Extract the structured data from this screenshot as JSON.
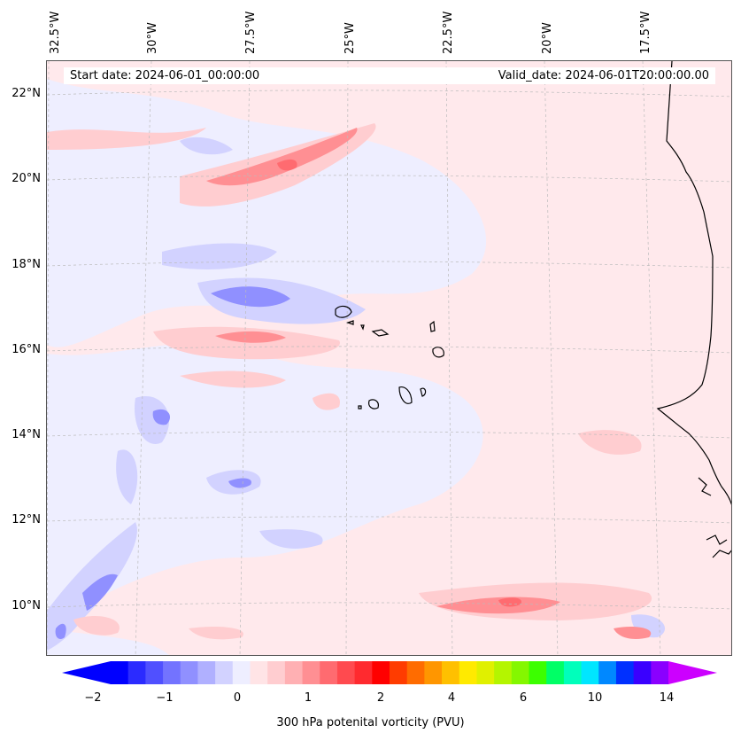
{
  "map": {
    "lon_labels": [
      "32.5°W",
      "30°W",
      "27.5°W",
      "25°W",
      "22.5°W",
      "20°W",
      "17.5°W"
    ],
    "lat_labels": [
      "22°N",
      "20°N",
      "18°N",
      "16°N",
      "14°N",
      "12°N",
      "10°N"
    ],
    "start_date": "Start date: 2024-06-01_00:00:00",
    "valid_date": "Valid_date: 2024-06-01T20:00:00.00",
    "background_color": "#ffe9ec"
  },
  "colorbar": {
    "label": "300 hPa potenital vorticity (PVU)",
    "ticks": [
      "−2",
      "−1",
      "0",
      "1",
      "2",
      "4",
      "6",
      "10",
      "14"
    ],
    "colors": [
      "#0000ff",
      "#2b2bff",
      "#5050ff",
      "#7373ff",
      "#9090ff",
      "#b0b0ff",
      "#d2d2ff",
      "#eeeeff",
      "#ffe4e6",
      "#ffcdd0",
      "#ffb0b3",
      "#ff8f93",
      "#ff6b70",
      "#ff4a4f",
      "#ff2a2f",
      "#ff0000",
      "#ff3c00",
      "#ff6c00",
      "#ff9600",
      "#ffc000",
      "#ffea00",
      "#e0f000",
      "#b4f500",
      "#84f700",
      "#3cff00",
      "#00ff66",
      "#00ffbb",
      "#00e6ff",
      "#0088ff",
      "#0030ff",
      "#3a00ff",
      "#8a00ff"
    ],
    "under_color": "#0000ff",
    "over_color": "#cc00ff"
  }
}
